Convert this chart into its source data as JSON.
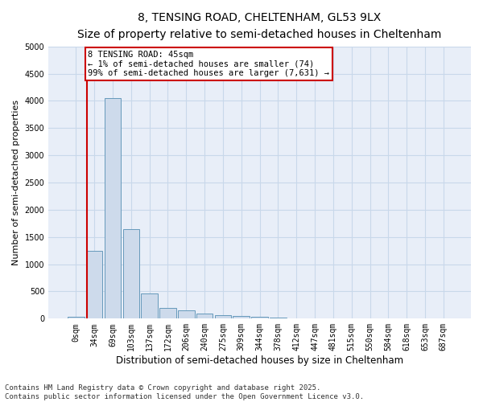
{
  "title1": "8, TENSING ROAD, CHELTENHAM, GL53 9LX",
  "title2": "Size of property relative to semi-detached houses in Cheltenham",
  "xlabel": "Distribution of semi-detached houses by size in Cheltenham",
  "ylabel": "Number of semi-detached properties",
  "bar_color": "#cddaeb",
  "bar_edge_color": "#6699bb",
  "categories": [
    "0sqm",
    "34sqm",
    "69sqm",
    "103sqm",
    "137sqm",
    "172sqm",
    "206sqm",
    "240sqm",
    "275sqm",
    "309sqm",
    "344sqm",
    "378sqm",
    "412sqm",
    "447sqm",
    "481sqm",
    "515sqm",
    "550sqm",
    "584sqm",
    "618sqm",
    "653sqm",
    "687sqm"
  ],
  "values": [
    30,
    1250,
    4050,
    1650,
    470,
    200,
    155,
    90,
    60,
    50,
    30,
    20,
    10,
    5,
    3,
    2,
    1,
    1,
    0,
    0,
    0
  ],
  "ylim": [
    0,
    5000
  ],
  "yticks": [
    0,
    500,
    1000,
    1500,
    2000,
    2500,
    3000,
    3500,
    4000,
    4500,
    5000
  ],
  "vline_pos": 0.58,
  "annotation_text": "8 TENSING ROAD: 45sqm\n← 1% of semi-detached houses are smaller (74)\n99% of semi-detached houses are larger (7,631) →",
  "annotation_box_color": "#ffffff",
  "annotation_box_edge": "#cc0000",
  "vline_color": "#cc0000",
  "grid_color": "#c8d8ea",
  "background_color": "#e8eef8",
  "footnote": "Contains HM Land Registry data © Crown copyright and database right 2025.\nContains public sector information licensed under the Open Government Licence v3.0.",
  "title1_fontsize": 10,
  "title2_fontsize": 9,
  "xlabel_fontsize": 8.5,
  "ylabel_fontsize": 8,
  "tick_fontsize": 7,
  "annotation_fontsize": 7.5,
  "footnote_fontsize": 6.5
}
